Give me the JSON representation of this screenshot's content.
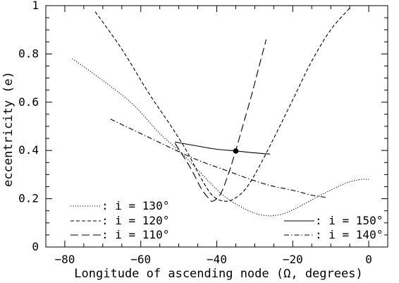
{
  "chart_data": {
    "type": "line",
    "title": "",
    "xlabel": "Longitude of ascending node (Ω, degrees)",
    "ylabel": "eccentricity (e)",
    "xlim": [
      -85,
      5
    ],
    "ylim": [
      0,
      1
    ],
    "x_ticks": [
      -80,
      -60,
      -40,
      -20,
      0
    ],
    "x_tick_labels": [
      "−80",
      "−60",
      "−40",
      "−20",
      "0"
    ],
    "y_ticks": [
      0,
      0.2,
      0.4,
      0.6,
      0.8,
      1
    ],
    "y_tick_labels": [
      "0",
      "0.2",
      "0.4",
      "0.6",
      "0.8",
      "1"
    ],
    "grid": false,
    "series": [
      {
        "name": ": i = 130°",
        "line_style": "dotted",
        "x": [
          -78,
          -70,
          -62,
          -55,
          -50,
          -45,
          -42,
          -38,
          -34,
          -30,
          -27,
          -25,
          -22,
          -18,
          -12,
          -6,
          -2,
          0
        ],
        "y": [
          0.78,
          0.69,
          0.59,
          0.47,
          0.4,
          0.32,
          0.27,
          0.21,
          0.17,
          0.14,
          0.13,
          0.13,
          0.14,
          0.17,
          0.22,
          0.265,
          0.28,
          0.28
        ]
      },
      {
        "name": ": i = 120°",
        "line_style": "dashed",
        "x": [
          -72,
          -65,
          -58,
          -52,
          -48,
          -45,
          -42,
          -40,
          -38,
          -36,
          -33,
          -30,
          -25,
          -20,
          -15,
          -10,
          -5
        ],
        "y": [
          0.975,
          0.82,
          0.64,
          0.5,
          0.4,
          0.31,
          0.23,
          0.2,
          0.19,
          0.195,
          0.23,
          0.3,
          0.45,
          0.61,
          0.77,
          0.9,
          0.99
        ]
      },
      {
        "name": ": i = 110°",
        "line_style": "long-dashed",
        "x": [
          -51,
          -47,
          -44,
          -42,
          -41,
          -39,
          -37,
          -35,
          -33,
          -31,
          -29,
          -27
        ],
        "y": [
          0.43,
          0.33,
          0.24,
          0.2,
          0.19,
          0.22,
          0.3,
          0.4,
          0.51,
          0.62,
          0.74,
          0.86
        ]
      },
      {
        "name": ": i = 150°",
        "line_style": "solid",
        "x": [
          -51,
          -45,
          -40,
          -35,
          -30,
          -26
        ],
        "y": [
          0.435,
          0.418,
          0.405,
          0.398,
          0.39,
          0.385
        ]
      },
      {
        "name": ": i = 140°",
        "line_style": "dash-dot",
        "x": [
          -68,
          -60,
          -52,
          -45,
          -38,
          -32,
          -26,
          -20,
          -15,
          -11
        ],
        "y": [
          0.53,
          0.47,
          0.41,
          0.36,
          0.32,
          0.285,
          0.255,
          0.235,
          0.215,
          0.205
        ]
      }
    ],
    "marker": {
      "x": -35,
      "y": 0.398
    },
    "legend_left": [
      ": i = 130°",
      ": i = 120°",
      ": i = 110°"
    ],
    "legend_right": [
      ": i = 150°",
      ": i = 140°"
    ]
  }
}
